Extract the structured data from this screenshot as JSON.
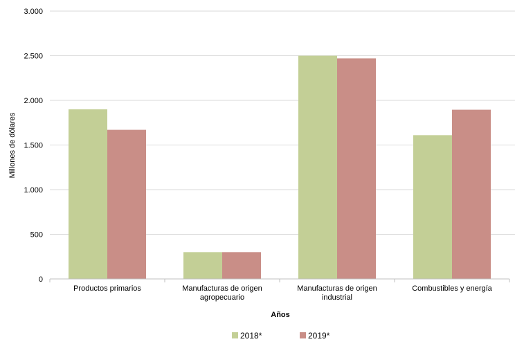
{
  "chart_data": {
    "type": "bar",
    "categories": [
      [
        "Productos primarios"
      ],
      [
        "Manufacturas de origen",
        "agropecuario"
      ],
      [
        "Manufacturas de origen",
        "industrial"
      ],
      [
        "Combustibles y energía"
      ]
    ],
    "series": [
      {
        "name": "2018*",
        "values": [
          1900,
          300,
          2500,
          1610
        ],
        "color": "#c3cf96"
      },
      {
        "name": "2019*",
        "values": [
          1670,
          300,
          2470,
          1895
        ],
        "color": "#c98e87"
      }
    ],
    "ylim": [
      0,
      3000
    ],
    "yticks": [
      0,
      500,
      1000,
      1500,
      2000,
      2500,
      3000
    ],
    "ytick_labels": [
      "0",
      "500",
      "1.000",
      "1.500",
      "2.000",
      "2.500",
      "3.000"
    ],
    "ylabel": "Millones de dólares",
    "xlabel": "Años",
    "grid": true,
    "gridline_color": "#d9d9d9",
    "legend_position": "bottom"
  }
}
